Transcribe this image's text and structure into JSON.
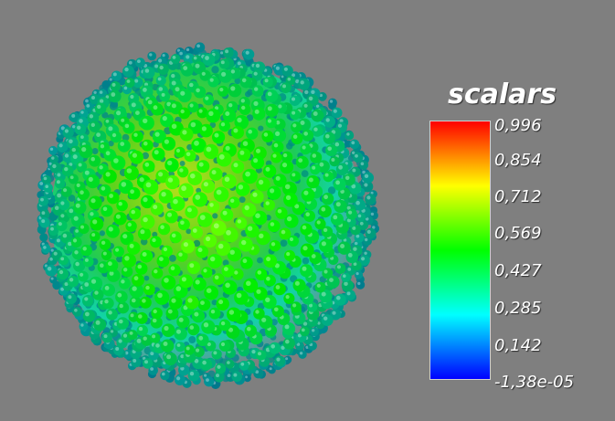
{
  "scalar_bar": {
    "title": "scalars",
    "ticks": [
      "0,996",
      "0,854",
      "0,712",
      "0,569",
      "0,427",
      "0,285",
      "0,142",
      "-1,38e-05"
    ],
    "range": [
      -1.38e-05,
      0.996
    ],
    "colormap": [
      "#0000ff",
      "#00ffff",
      "#00ff00",
      "#ffff00",
      "#ff0000"
    ]
  },
  "colors": {
    "background": "#7f7f7f"
  }
}
